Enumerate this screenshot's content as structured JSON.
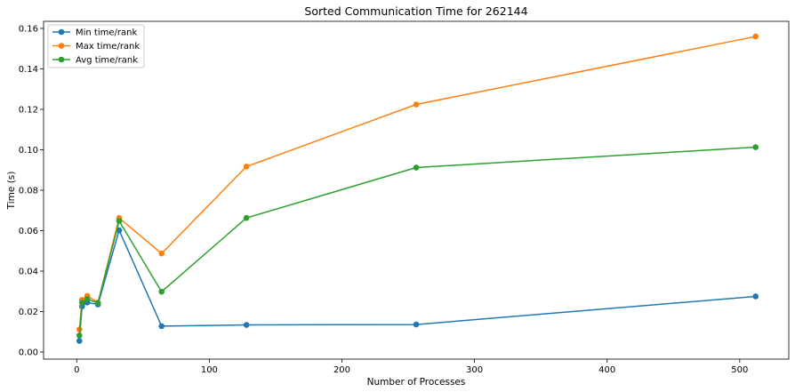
{
  "chart_data": {
    "type": "line",
    "title": "Sorted Communication Time for 262144",
    "xlabel": "Number of Processes",
    "ylabel": "Time (s)",
    "xlim": [
      -25,
      537
    ],
    "ylim": [
      -0.0035,
      0.1635
    ],
    "xticks": [
      0,
      100,
      200,
      300,
      400,
      500
    ],
    "yticks": [
      0.0,
      0.02,
      0.04,
      0.06,
      0.08,
      0.1,
      0.12,
      0.14,
      0.16
    ],
    "ytick_labels": [
      "0.00",
      "0.02",
      "0.04",
      "0.06",
      "0.08",
      "0.10",
      "0.12",
      "0.14",
      "0.16"
    ],
    "grid": false,
    "legend_position": "top-left",
    "x": [
      2,
      4,
      8,
      16,
      32,
      64,
      128,
      256,
      512
    ],
    "series": [
      {
        "name": "Min time/rank",
        "color": "#1f77b4",
        "values": [
          0.0055,
          0.0225,
          0.0245,
          0.0235,
          0.0602,
          0.0128,
          0.0134,
          0.0136,
          0.0275
        ]
      },
      {
        "name": "Max time/rank",
        "color": "#ff7f0e",
        "values": [
          0.0112,
          0.0258,
          0.0278,
          0.0245,
          0.0663,
          0.0487,
          0.0917,
          0.1224,
          0.156
        ]
      },
      {
        "name": "Avg time/rank",
        "color": "#2ca02c",
        "values": [
          0.0082,
          0.0245,
          0.0262,
          0.0242,
          0.0648,
          0.0298,
          0.0663,
          0.0912,
          0.1013
        ]
      }
    ]
  }
}
